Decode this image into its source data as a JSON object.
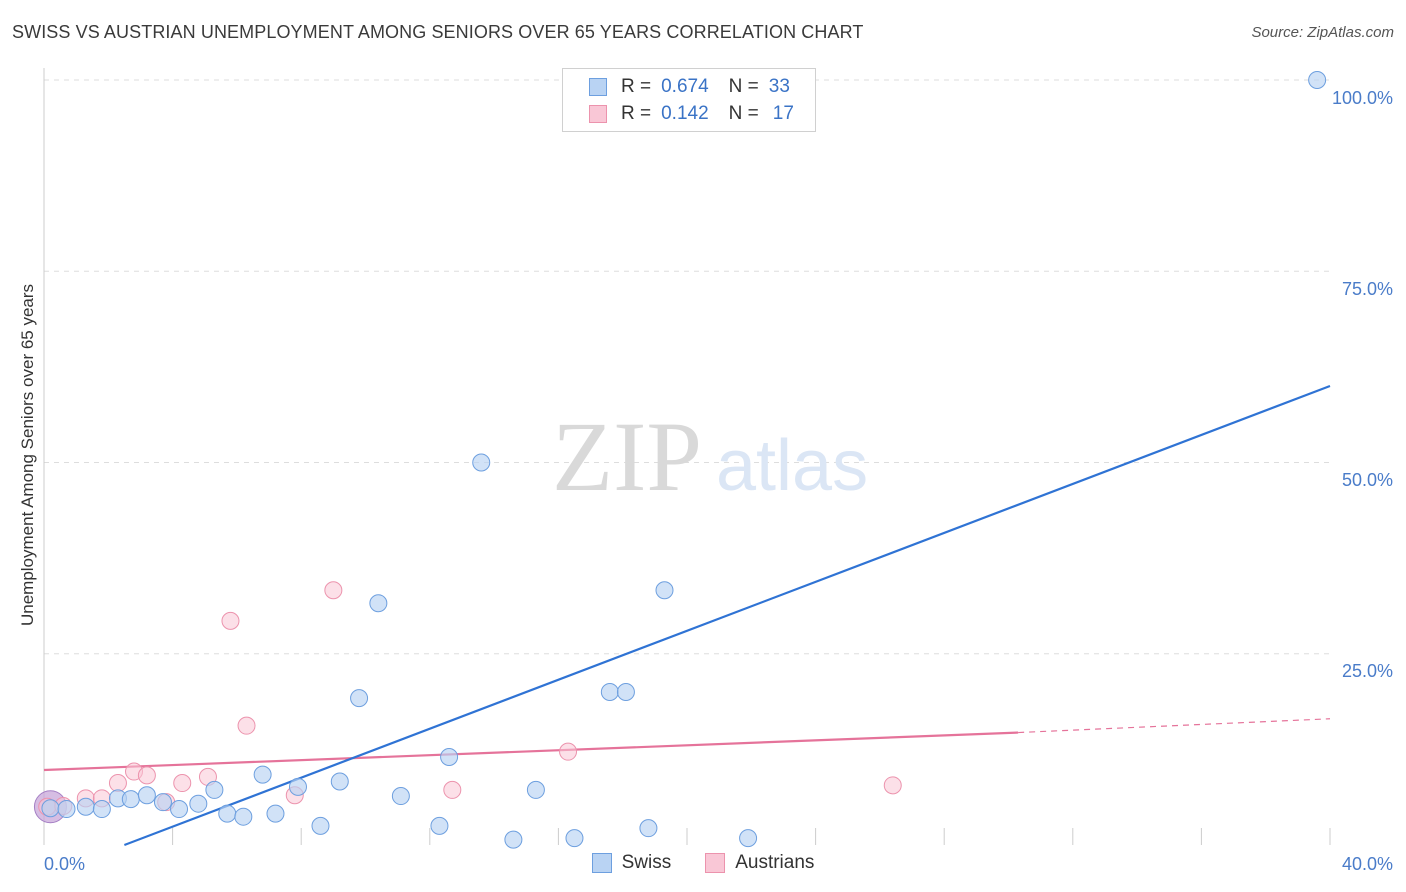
{
  "chart_data": {
    "type": "scatter",
    "title": "SWISS VS AUSTRIAN UNEMPLOYMENT AMONG SENIORS OVER 65 YEARS CORRELATION CHART",
    "source": "Source: ZipAtlas.com",
    "xlabel": "",
    "ylabel": "Unemployment Among Seniors over 65 years",
    "xlim": [
      0,
      40
    ],
    "ylim": [
      0,
      100
    ],
    "x_tick_labels": [
      "0.0%",
      "40.0%"
    ],
    "y_tick_labels": [
      "100.0%",
      "75.0%",
      "50.0%",
      "25.0%"
    ],
    "y_tick_values": [
      100,
      75,
      50,
      25
    ],
    "watermark": {
      "zip": "ZIP",
      "atlas": "atlas"
    },
    "colors": {
      "swiss_fill": "#b9d3f3",
      "swiss_stroke": "#6d9fdf",
      "swiss_line": "#2f73d4",
      "austrian_fill": "#f9c7d6",
      "austrian_stroke": "#ec93ad",
      "austrian_line": "#e5739a",
      "grid": "#dddddd",
      "tick": "#4a7cc9"
    },
    "legend": [
      {
        "r_label": "R =",
        "r_value": "0.674",
        "n_label": "N =",
        "n_value": "33"
      },
      {
        "r_label": "R =",
        "r_value": "0.142",
        "n_label": "N =",
        "n_value": "17"
      }
    ],
    "series": [
      {
        "name": "Swiss",
        "points": [
          [
            0.2,
            4.8
          ],
          [
            0.7,
            4.7
          ],
          [
            1.3,
            5.0
          ],
          [
            1.8,
            4.7
          ],
          [
            2.3,
            6.1
          ],
          [
            2.7,
            6.0
          ],
          [
            3.2,
            6.5
          ],
          [
            3.7,
            5.6
          ],
          [
            4.2,
            4.7
          ],
          [
            4.8,
            5.4
          ],
          [
            5.3,
            7.2
          ],
          [
            5.7,
            4.1
          ],
          [
            6.2,
            3.7
          ],
          [
            6.8,
            9.2
          ],
          [
            7.2,
            4.1
          ],
          [
            7.9,
            7.6
          ],
          [
            8.6,
            2.5
          ],
          [
            9.2,
            8.3
          ],
          [
            9.8,
            19.2
          ],
          [
            10.4,
            31.6
          ],
          [
            11.1,
            6.4
          ],
          [
            12.3,
            2.5
          ],
          [
            12.6,
            11.5
          ],
          [
            13.6,
            50.0
          ],
          [
            14.6,
            0.7
          ],
          [
            15.3,
            7.2
          ],
          [
            16.5,
            0.9
          ],
          [
            17.6,
            20.0
          ],
          [
            18.1,
            20.0
          ],
          [
            18.8,
            2.2
          ],
          [
            19.3,
            33.3
          ],
          [
            21.9,
            0.9
          ],
          [
            39.6,
            100.0
          ]
        ],
        "trend": {
          "x": [
            2.5,
            40
          ],
          "y": [
            0,
            60
          ]
        }
      },
      {
        "name": "Austrians",
        "points": [
          [
            0.1,
            5.0
          ],
          [
            0.6,
            5.1
          ],
          [
            1.3,
            6.1
          ],
          [
            1.8,
            6.1
          ],
          [
            2.3,
            8.1
          ],
          [
            2.8,
            9.6
          ],
          [
            3.2,
            9.1
          ],
          [
            3.8,
            5.6
          ],
          [
            4.3,
            8.1
          ],
          [
            5.1,
            8.9
          ],
          [
            5.8,
            29.3
          ],
          [
            6.3,
            15.6
          ],
          [
            7.8,
            6.5
          ],
          [
            9.0,
            33.3
          ],
          [
            12.7,
            7.2
          ],
          [
            16.3,
            12.2
          ],
          [
            26.4,
            7.8
          ]
        ],
        "trend": {
          "x": [
            0,
            30.3
          ],
          "y": [
            9.8,
            14.7
          ]
        },
        "trend_dashed": {
          "x": [
            30.3,
            40
          ],
          "y": [
            14.7,
            16.5
          ]
        }
      }
    ]
  }
}
